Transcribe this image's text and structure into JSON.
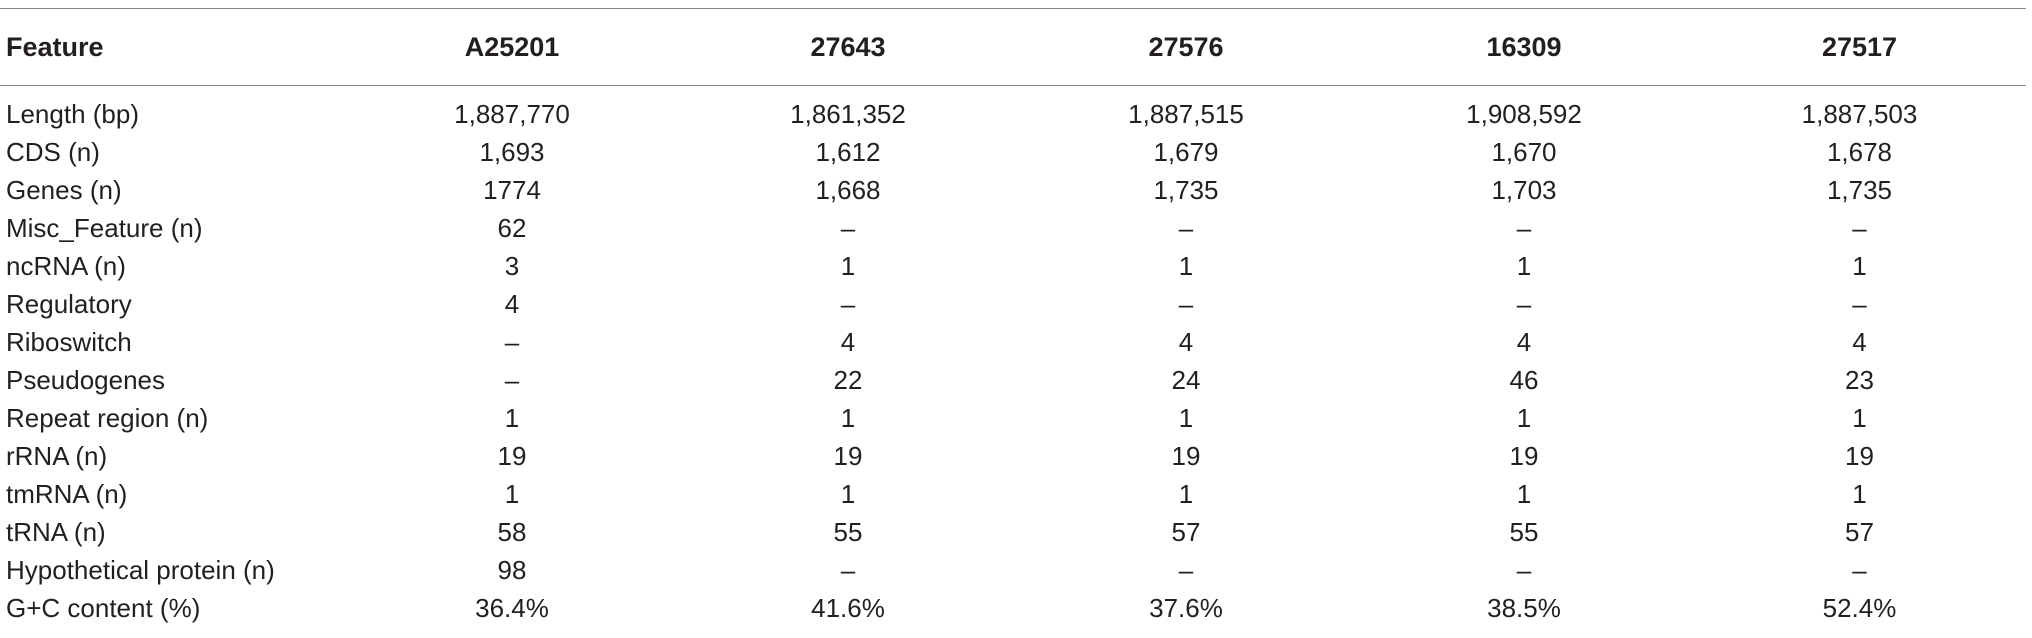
{
  "table": {
    "headers": [
      "Feature",
      "A25201",
      "27643",
      "27576",
      "16309",
      "27517"
    ],
    "rows": [
      [
        "Length (bp)",
        "1,887,770",
        "1,861,352",
        "1,887,515",
        "1,908,592",
        "1,887,503"
      ],
      [
        "CDS (n)",
        "1,693",
        "1,612",
        "1,679",
        "1,670",
        "1,678"
      ],
      [
        "Genes (n)",
        "1774",
        "1,668",
        "1,735",
        "1,703",
        "1,735"
      ],
      [
        "Misc_Feature (n)",
        "62",
        "–",
        "–",
        "–",
        "–"
      ],
      [
        "ncRNA (n)",
        "3",
        "1",
        "1",
        "1",
        "1"
      ],
      [
        "Regulatory",
        "4",
        "–",
        "–",
        "–",
        "–"
      ],
      [
        "Riboswitch",
        "–",
        "4",
        "4",
        "4",
        "4"
      ],
      [
        "Pseudogenes",
        "–",
        "22",
        "24",
        "46",
        "23"
      ],
      [
        "Repeat region (n)",
        "1",
        "1",
        "1",
        "1",
        "1"
      ],
      [
        "rRNA (n)",
        "19",
        "19",
        "19",
        "19",
        "19"
      ],
      [
        "tmRNA (n)",
        "1",
        "1",
        "1",
        "1",
        "1"
      ],
      [
        "tRNA (n)",
        "58",
        "55",
        "57",
        "55",
        "57"
      ],
      [
        "Hypothetical protein (n)",
        "98",
        "–",
        "–",
        "–",
        "–"
      ],
      [
        "G+C content (%)",
        "36.4%",
        "41.6%",
        "37.6%",
        "38.5%",
        "52.4%"
      ]
    ]
  }
}
